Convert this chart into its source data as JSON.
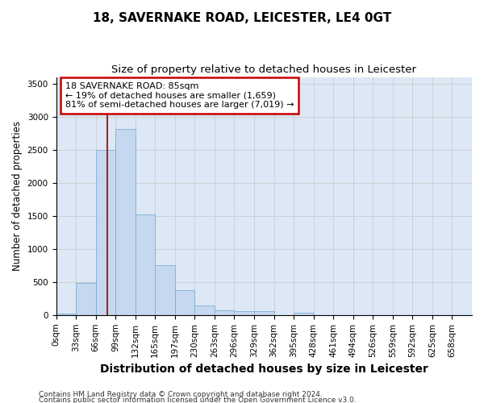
{
  "title": "18, SAVERNAKE ROAD, LEICESTER, LE4 0GT",
  "subtitle": "Size of property relative to detached houses in Leicester",
  "xlabel": "Distribution of detached houses by size in Leicester",
  "ylabel": "Number of detached properties",
  "bin_labels": [
    "0sqm",
    "33sqm",
    "66sqm",
    "99sqm",
    "132sqm",
    "165sqm",
    "197sqm",
    "230sqm",
    "263sqm",
    "296sqm",
    "329sqm",
    "362sqm",
    "395sqm",
    "428sqm",
    "461sqm",
    "494sqm",
    "526sqm",
    "559sqm",
    "592sqm",
    "625sqm",
    "658sqm"
  ],
  "bar_heights": [
    20,
    480,
    2500,
    2820,
    1520,
    750,
    380,
    140,
    75,
    55,
    55,
    0,
    35,
    0,
    0,
    0,
    0,
    0,
    0,
    0,
    0
  ],
  "bar_color": "#c5d8ef",
  "bar_edge_color": "#7bafd4",
  "vline_color": "#aa2222",
  "annotation_line1": "18 SAVERNAKE ROAD: 85sqm",
  "annotation_line2": "← 19% of detached houses are smaller (1,659)",
  "annotation_line3": "81% of semi-detached houses are larger (7,019) →",
  "annotation_box_edge": "#cc0000",
  "annotation_box_face": "#ffffff",
  "ylim": [
    0,
    3600
  ],
  "yticks": [
    0,
    500,
    1000,
    1500,
    2000,
    2500,
    3000,
    3500
  ],
  "grid_color": "#cccccc",
  "bg_color": "#dce8f5",
  "fig_bg_color": "#ffffff",
  "footer1": "Contains HM Land Registry data © Crown copyright and database right 2024.",
  "footer2": "Contains public sector information licensed under the Open Government Licence v3.0.",
  "title_fontsize": 11,
  "subtitle_fontsize": 9.5,
  "xlabel_fontsize": 10,
  "ylabel_fontsize": 8.5,
  "tick_fontsize": 7.5,
  "annotation_fontsize": 8,
  "footer_fontsize": 6.5
}
